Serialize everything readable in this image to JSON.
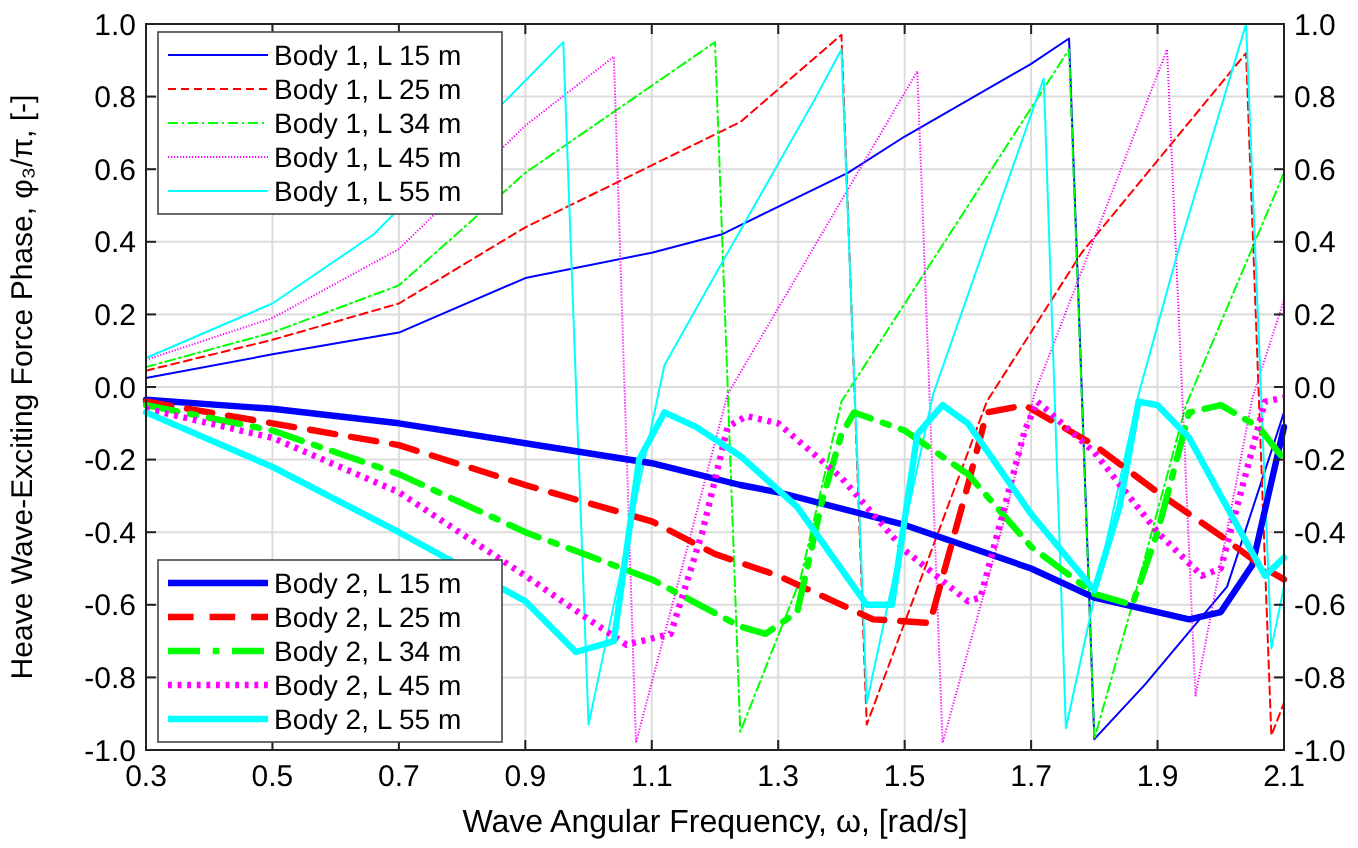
{
  "chart_data": {
    "type": "line",
    "xlabel": "Wave Angular Frequency, ω, [rad/s]",
    "ylabel": "Heave Wave-Exciting Force Phase, φ₃/π, [-]",
    "xlim": [
      0.3,
      2.1
    ],
    "xticks": [
      0.3,
      0.5,
      0.7,
      0.9,
      1.1,
      1.3,
      1.5,
      1.7,
      1.9,
      2.1
    ],
    "ylim": [
      -1,
      1
    ],
    "yticks": [
      {
        "value": -1,
        "label": "-1.0"
      },
      {
        "value": -0.8,
        "label": "-0.8"
      },
      {
        "value": -0.6,
        "label": "-0.6"
      },
      {
        "value": -0.4,
        "label": "-0.4"
      },
      {
        "value": -0.2,
        "label": "-0.2"
      },
      {
        "value": 0,
        "label": "0.0"
      },
      {
        "value": 0.2,
        "label": "0.2"
      },
      {
        "value": 0.4,
        "label": "0.4"
      },
      {
        "value": 0.6,
        "label": "0.6"
      },
      {
        "value": 0.8,
        "label": "0.8"
      },
      {
        "value": 1,
        "label": "1.0"
      }
    ],
    "y2lim": [
      -1,
      1
    ],
    "y2ticks": [
      {
        "value": -1,
        "label": "-1.0"
      },
      {
        "value": -0.8,
        "label": "-0.8"
      },
      {
        "value": -0.6,
        "label": "-0.6"
      },
      {
        "value": -0.4,
        "label": "-0.4"
      },
      {
        "value": -0.2,
        "label": "-0.2"
      },
      {
        "value": 0,
        "label": "0.0"
      },
      {
        "value": 0.2,
        "label": "0.2"
      },
      {
        "value": 0.4,
        "label": "0.4"
      },
      {
        "value": 0.6,
        "label": "0.6"
      },
      {
        "value": 0.8,
        "label": "0.8"
      },
      {
        "value": 1,
        "label": "1.0"
      }
    ],
    "grid": true,
    "legend": "left",
    "series": [
      {
        "name": "Body 1, L 15 m",
        "color": "#0000ff",
        "line_style": "solid",
        "x": [
          0.3,
          0.5,
          0.7,
          0.9,
          1.1,
          1.21,
          1.41,
          1.5,
          1.7,
          1.76,
          1.8,
          1.88,
          2.01,
          2.1
        ],
        "values": [
          0.025,
          0.09,
          0.15,
          0.3,
          0.37,
          0.42,
          0.59,
          0.69,
          0.89,
          0.96,
          -0.97,
          -0.82,
          -0.55,
          -0.07
        ]
      },
      {
        "name": "Body 1, L 25 m",
        "color": "#ff0000",
        "line_style": "dashed",
        "x": [
          0.3,
          0.5,
          0.7,
          0.9,
          1.24,
          1.4,
          1.44,
          1.63,
          1.78,
          2.04,
          2.08,
          2.1
        ],
        "values": [
          0.045,
          0.13,
          0.23,
          0.44,
          0.73,
          0.97,
          -0.93,
          -0.04,
          0.37,
          0.92,
          -0.96,
          -0.87
        ]
      },
      {
        "name": "Body 1, L 34 m",
        "color": "#00ff00",
        "line_style": "dashdot",
        "x": [
          0.3,
          0.5,
          0.7,
          0.9,
          1.2,
          1.24,
          1.335,
          1.4,
          1.76,
          1.8,
          1.86,
          1.945,
          2.1
        ],
        "values": [
          0.055,
          0.15,
          0.28,
          0.59,
          0.95,
          -0.95,
          -0.53,
          -0.04,
          0.93,
          -0.97,
          -0.6,
          -0.05,
          0.59
        ]
      },
      {
        "name": "Body 1, L 45 m",
        "color": "#ff00ff",
        "line_style": "dotted",
        "x": [
          0.3,
          0.5,
          0.7,
          0.9,
          1.04,
          1.075,
          1.22,
          1.52,
          1.56,
          1.66,
          1.705,
          1.915,
          1.96,
          2.05,
          2.1
        ],
        "values": [
          0.075,
          0.19,
          0.38,
          0.72,
          0.91,
          -0.98,
          -0.02,
          0.87,
          -0.98,
          -0.35,
          -0.02,
          0.93,
          -0.85,
          -0.03,
          0.24
        ]
      },
      {
        "name": "Body 1, L 55 m",
        "color": "#00ffff",
        "line_style": "solid",
        "x": [
          0.3,
          0.5,
          0.66,
          0.96,
          1.0,
          1.12,
          1.22,
          1.357,
          1.4,
          1.44,
          1.545,
          1.72,
          1.755,
          1.87,
          1.935,
          2.04,
          2.08,
          2.1
        ],
        "values": [
          0.08,
          0.23,
          0.42,
          0.95,
          -0.93,
          0.06,
          0.37,
          0.79,
          0.93,
          -0.87,
          -0.02,
          0.85,
          -0.94,
          -0.02,
          0.39,
          1.0,
          -0.72,
          -0.55
        ]
      },
      {
        "name": "Body 2, L 15 m",
        "color": "#0000ff",
        "line_style": "solid",
        "x": [
          0.3,
          0.5,
          0.7,
          0.9,
          1.1,
          1.24,
          1.3,
          1.5,
          1.7,
          1.8,
          1.95,
          2.0,
          2.05,
          2.1
        ],
        "values": [
          -0.035,
          -0.06,
          -0.1,
          -0.155,
          -0.21,
          -0.27,
          -0.29,
          -0.38,
          -0.5,
          -0.58,
          -0.64,
          -0.62,
          -0.49,
          -0.11
        ]
      },
      {
        "name": "Body 2, L 25 m",
        "color": "#ff0000",
        "line_style": "dashed",
        "x": [
          0.3,
          0.5,
          0.7,
          0.9,
          1.1,
          1.2,
          1.3,
          1.4,
          1.45,
          1.54,
          1.6,
          1.63,
          1.69,
          1.8,
          1.9,
          2.0,
          2.07,
          2.1
        ],
        "values": [
          -0.04,
          -0.1,
          -0.16,
          -0.27,
          -0.37,
          -0.46,
          -0.52,
          -0.6,
          -0.64,
          -0.65,
          -0.27,
          -0.07,
          -0.05,
          -0.16,
          -0.29,
          -0.41,
          -0.5,
          -0.53
        ]
      },
      {
        "name": "Body 2, L 34 m",
        "color": "#00ff00",
        "line_style": "dashdot",
        "x": [
          0.3,
          0.5,
          0.7,
          0.9,
          1.1,
          1.24,
          1.28,
          1.33,
          1.37,
          1.4,
          1.42,
          1.5,
          1.6,
          1.7,
          1.8,
          1.86,
          1.9,
          1.95,
          2.0,
          2.06,
          2.1
        ],
        "values": [
          -0.05,
          -0.12,
          -0.24,
          -0.4,
          -0.53,
          -0.66,
          -0.68,
          -0.62,
          -0.31,
          -0.13,
          -0.07,
          -0.12,
          -0.24,
          -0.44,
          -0.57,
          -0.6,
          -0.4,
          -0.07,
          -0.05,
          -0.11,
          -0.2
        ]
      },
      {
        "name": "Body 2, L 45 m",
        "color": "#ff00ff",
        "line_style": "dotted",
        "x": [
          0.3,
          0.5,
          0.7,
          0.9,
          1.0,
          1.06,
          1.13,
          1.18,
          1.22,
          1.25,
          1.3,
          1.4,
          1.5,
          1.6,
          1.62,
          1.69,
          1.71,
          1.8,
          1.9,
          1.97,
          2.0,
          2.05,
          2.07,
          2.1
        ],
        "values": [
          -0.06,
          -0.14,
          -0.29,
          -0.52,
          -0.64,
          -0.71,
          -0.68,
          -0.4,
          -0.11,
          -0.08,
          -0.1,
          -0.25,
          -0.45,
          -0.59,
          -0.58,
          -0.12,
          -0.04,
          -0.18,
          -0.4,
          -0.52,
          -0.5,
          -0.17,
          -0.04,
          -0.03
        ]
      },
      {
        "name": "Body 2, L 55 m",
        "color": "#00ffff",
        "line_style": "solid",
        "x": [
          0.3,
          0.5,
          0.7,
          0.9,
          0.98,
          1.04,
          1.08,
          1.12,
          1.17,
          1.24,
          1.33,
          1.44,
          1.48,
          1.52,
          1.56,
          1.6,
          1.7,
          1.8,
          1.84,
          1.87,
          1.9,
          1.95,
          2.0,
          2.07,
          2.1
        ],
        "values": [
          -0.07,
          -0.22,
          -0.4,
          -0.59,
          -0.73,
          -0.7,
          -0.2,
          -0.07,
          -0.11,
          -0.19,
          -0.33,
          -0.6,
          -0.6,
          -0.13,
          -0.05,
          -0.1,
          -0.35,
          -0.56,
          -0.33,
          -0.04,
          -0.05,
          -0.14,
          -0.3,
          -0.52,
          -0.47
        ]
      }
    ]
  }
}
